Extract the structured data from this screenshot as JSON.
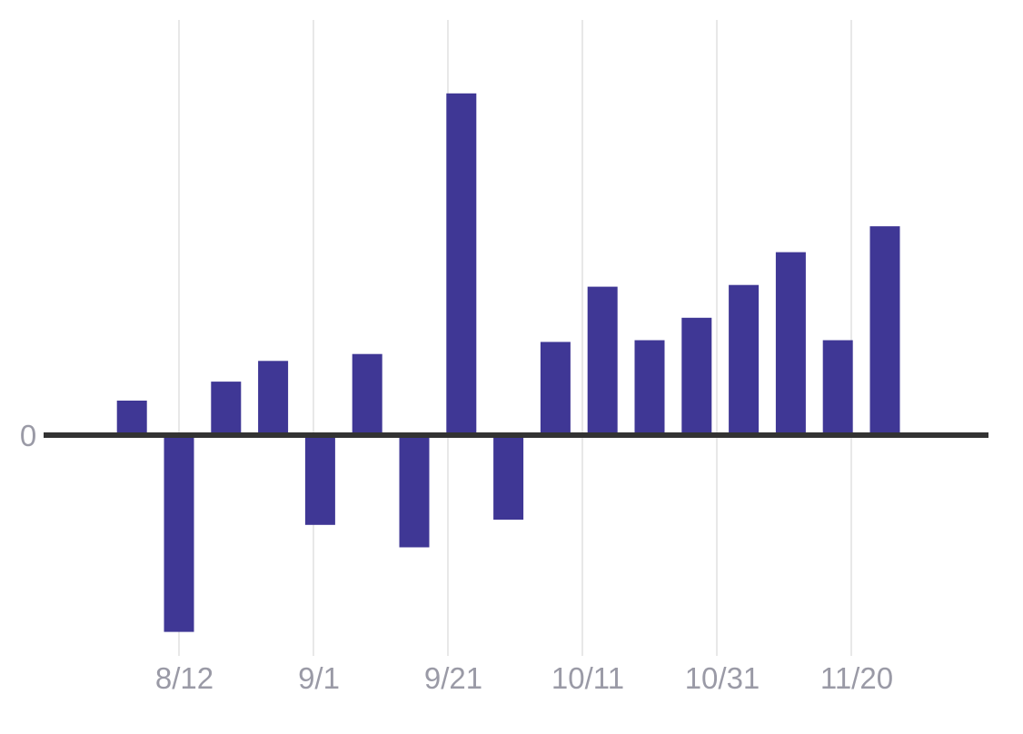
{
  "chart_data": {
    "type": "bar",
    "colors": {
      "bar": "#3f3795",
      "grid": "#e0e0e0",
      "zero_line": "#333333",
      "tick_text": "#9a9aa6"
    },
    "x_tick_labels": [
      "8/12",
      "9/1",
      "9/21",
      "10/11",
      "10/31",
      "11/20"
    ],
    "y_tick_labels": [
      "0"
    ],
    "xlabel": "",
    "ylabel": "",
    "grid": "vertical",
    "x_format": "M/D",
    "bars": [
      {
        "date": "8/5",
        "value": 1.0
      },
      {
        "date": "8/12",
        "value": -5.7
      },
      {
        "date": "8/19",
        "value": 1.55
      },
      {
        "date": "8/26",
        "value": 2.15
      },
      {
        "date": "9/2",
        "value": -2.6
      },
      {
        "date": "9/9",
        "value": 2.35
      },
      {
        "date": "9/16",
        "value": -3.25
      },
      {
        "date": "9/23",
        "value": 9.9
      },
      {
        "date": "9/30",
        "value": -2.45
      },
      {
        "date": "10/7",
        "value": 2.7
      },
      {
        "date": "10/14",
        "value": 4.3
      },
      {
        "date": "10/21",
        "value": 2.75
      },
      {
        "date": "10/28",
        "value": 3.4
      },
      {
        "date": "11/4",
        "value": 4.35
      },
      {
        "date": "11/11",
        "value": 5.3
      },
      {
        "date": "11/18",
        "value": 2.75
      },
      {
        "date": "11/25",
        "value": 6.05
      }
    ],
    "ylim": [
      -6.3,
      11.8
    ]
  }
}
